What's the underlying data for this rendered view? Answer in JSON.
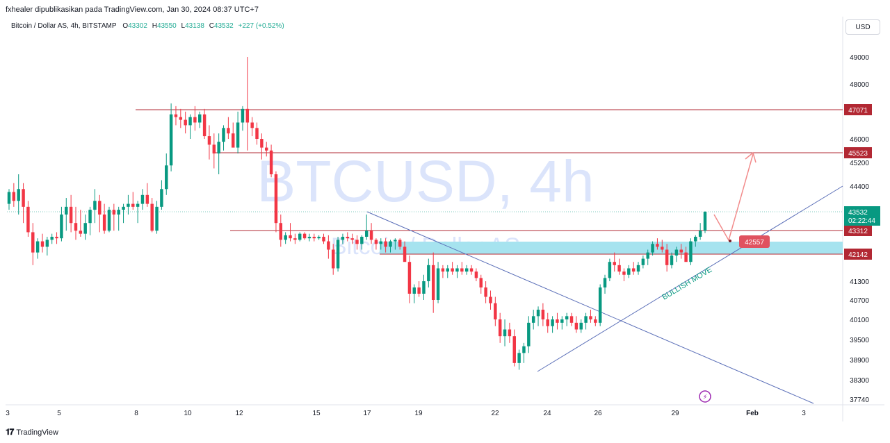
{
  "header": {
    "publish_line": "fxhealer dipublikasikan pada TradingView.com, Jan 30, 2024 08:37 UTC+7",
    "symbol_title": "Bitcoin / Dollar AS, 4h, BITSTAMP",
    "open_label": "O",
    "open": "43302",
    "high_label": "H",
    "high": "43550",
    "low_label": "L",
    "low": "43138",
    "close_label": "C",
    "close": "43532",
    "change": "+227 (+0.52%)",
    "currency": "USD"
  },
  "footer": {
    "brand": "TradingView",
    "logo_glyph": "𝟏𝟕"
  },
  "chart_data": {
    "type": "candlestick",
    "watermark": "BTCUSD, 4h",
    "watermark_sub": "Bitcoin / Dollar AS",
    "y_ticks": [
      49000,
      48000,
      46000,
      45200,
      44400,
      41300,
      40700,
      40100,
      39500,
      38900,
      38300,
      37740
    ],
    "x_ticks": [
      "3",
      "5",
      "8",
      "10",
      "12",
      "15",
      "17",
      "19",
      "22",
      "24",
      "26",
      "29",
      "Feb",
      "3"
    ],
    "levels": [
      {
        "price": 47071,
        "label": "47071"
      },
      {
        "price": 45523,
        "label": "45523"
      },
      {
        "price": 43312,
        "label": "43312"
      },
      {
        "price": 42142,
        "label": "42142"
      }
    ],
    "last_price": {
      "label": "43532",
      "countdown": "02:22:44"
    },
    "zone": {
      "low": 42142,
      "high": 42580,
      "color": "#a6e3ef"
    },
    "projection_target": {
      "label": "42557"
    },
    "annotation": "BULLISH MOVE",
    "colors": {
      "up": "#089981",
      "down": "#f23645",
      "level": "#b22833",
      "trend": "#5b6fb8",
      "arrow": "#f28b8b",
      "label_bg": "#b22833",
      "price_bg": "#089981"
    },
    "candles": [
      [
        43800,
        44300,
        43600,
        44200
      ],
      [
        44200,
        44500,
        43700,
        43900
      ],
      [
        43900,
        44800,
        43500,
        44300
      ],
      [
        44300,
        44500,
        43400,
        43700
      ],
      [
        43700,
        43900,
        42900,
        43200
      ],
      [
        43200,
        43400,
        41800,
        42200
      ],
      [
        42200,
        42800,
        42000,
        42600
      ],
      [
        42600,
        43100,
        42200,
        42400
      ],
      [
        42400,
        42900,
        42100,
        42700
      ],
      [
        42700,
        43100,
        42500,
        42900
      ],
      [
        42900,
        43200,
        42500,
        42800
      ],
      [
        42800,
        43700,
        42600,
        43500
      ],
      [
        43500,
        44000,
        43300,
        43700
      ],
      [
        43700,
        44100,
        43200,
        43400
      ],
      [
        43400,
        43700,
        42700,
        43300
      ],
      [
        43300,
        43600,
        42900,
        43100
      ],
      [
        43100,
        43500,
        42700,
        43400
      ],
      [
        43400,
        43700,
        43000,
        43600
      ],
      [
        43600,
        44300,
        43400,
        43900
      ],
      [
        43900,
        44100,
        43200,
        43500
      ],
      [
        43500,
        43800,
        43100,
        43300
      ],
      [
        43300,
        43700,
        43200,
        43600
      ],
      [
        43600,
        43800,
        43300,
        43500
      ],
      [
        43500,
        43700,
        43300,
        43600
      ],
      [
        43600,
        43800,
        43400,
        43700
      ],
      [
        43700,
        44100,
        43500,
        43800
      ],
      [
        43800,
        44200,
        43600,
        43700
      ],
      [
        43700,
        43900,
        43400,
        43800
      ],
      [
        43800,
        44300,
        43600,
        44100
      ],
      [
        44100,
        44500,
        43700,
        43800
      ],
      [
        43800,
        44000,
        43200,
        43300
      ],
      [
        43300,
        43900,
        43100,
        43700
      ],
      [
        43700,
        44600,
        43600,
        44300
      ],
      [
        44300,
        45500,
        44100,
        45100
      ],
      [
        45100,
        47300,
        44900,
        46900
      ],
      [
        46900,
        47200,
        46500,
        46800
      ],
      [
        46800,
        47100,
        46400,
        46700
      ],
      [
        46700,
        47000,
        46200,
        46500
      ],
      [
        46500,
        46900,
        46000,
        46800
      ],
      [
        46800,
        47200,
        46300,
        46600
      ],
      [
        46600,
        47000,
        46400,
        46900
      ],
      [
        46900,
        47100,
        46000,
        46100
      ],
      [
        46100,
        46500,
        45300,
        45800
      ],
      [
        45800,
        46200,
        45000,
        45500
      ],
      [
        45500,
        46200,
        44800,
        45900
      ],
      [
        45900,
        46500,
        45600,
        46400
      ],
      [
        46400,
        46800,
        46000,
        46200
      ],
      [
        46200,
        46600,
        45800,
        45700
      ],
      [
        45700,
        47000,
        45500,
        46600
      ],
      [
        46600,
        47200,
        46300,
        47100
      ],
      [
        47100,
        49000,
        45600,
        46600
      ],
      [
        46600,
        46800,
        46100,
        46400
      ],
      [
        46400,
        46600,
        45800,
        46000
      ],
      [
        46000,
        46200,
        45300,
        45700
      ],
      [
        45700,
        45900,
        45400,
        45600
      ],
      [
        45600,
        45800,
        44700,
        44800
      ],
      [
        44800,
        44900,
        43200,
        43400
      ],
      [
        43400,
        43500,
        42400,
        42700
      ],
      [
        42700,
        43200,
        42500,
        43000
      ],
      [
        43000,
        43400,
        42600,
        42800
      ],
      [
        42800,
        43100,
        42500,
        42700
      ],
      [
        42700,
        43200,
        42600,
        43100
      ],
      [
        43100,
        43200,
        42700,
        42800
      ],
      [
        42800,
        43100,
        42600,
        42900
      ],
      [
        42900,
        43100,
        42600,
        42800
      ],
      [
        42800,
        43000,
        42700,
        42900
      ],
      [
        42900,
        43100,
        42500,
        42600
      ],
      [
        42600,
        43000,
        42000,
        42300
      ],
      [
        42300,
        42500,
        41500,
        41700
      ],
      [
        41700,
        42900,
        41600,
        42700
      ],
      [
        42700,
        43100,
        42500,
        42900
      ],
      [
        42900,
        43200,
        42600,
        42800
      ],
      [
        42800,
        43100,
        42500,
        42700
      ],
      [
        42700,
        43000,
        42300,
        42500
      ],
      [
        42500,
        43000,
        42300,
        42900
      ],
      [
        42900,
        43500,
        42700,
        43300
      ],
      [
        43300,
        43400,
        42500,
        42700
      ],
      [
        42700,
        42800,
        42300,
        42500
      ],
      [
        42500,
        42800,
        42300,
        42600
      ],
      [
        42600,
        42800,
        42200,
        42400
      ],
      [
        42400,
        42700,
        42200,
        42600
      ],
      [
        42600,
        42800,
        42300,
        42700
      ],
      [
        42700,
        42800,
        42300,
        42400
      ],
      [
        42400,
        42600,
        42000,
        41900
      ],
      [
        41900,
        42100,
        40600,
        40900
      ],
      [
        40900,
        41200,
        40600,
        41100
      ],
      [
        41100,
        41300,
        40800,
        40900
      ],
      [
        40900,
        41500,
        40700,
        41300
      ],
      [
        41300,
        42000,
        41100,
        41800
      ],
      [
        41800,
        42200,
        40300,
        40700
      ],
      [
        40700,
        41900,
        40600,
        41700
      ],
      [
        41700,
        41800,
        41400,
        41600
      ],
      [
        41600,
        41800,
        41400,
        41700
      ],
      [
        41700,
        41900,
        41500,
        41600
      ],
      [
        41600,
        41800,
        41400,
        41700
      ],
      [
        41700,
        41900,
        41500,
        41600
      ],
      [
        41600,
        41800,
        41500,
        41700
      ],
      [
        41700,
        41800,
        41500,
        41600
      ],
      [
        41600,
        41700,
        41300,
        41400
      ],
      [
        41400,
        41500,
        40900,
        41100
      ],
      [
        41100,
        41300,
        40600,
        40800
      ],
      [
        40800,
        41000,
        40400,
        40600
      ],
      [
        40600,
        40800,
        39900,
        40100
      ],
      [
        40100,
        40300,
        39400,
        39600
      ],
      [
        39600,
        40100,
        39300,
        39800
      ],
      [
        39800,
        40000,
        39400,
        39600
      ],
      [
        39600,
        39800,
        38700,
        38800
      ],
      [
        38800,
        39200,
        38600,
        39100
      ],
      [
        39100,
        39400,
        38800,
        39300
      ],
      [
        39300,
        40200,
        39100,
        40000
      ],
      [
        40000,
        40400,
        39800,
        40200
      ],
      [
        40200,
        40500,
        39900,
        40400
      ],
      [
        40400,
        40600,
        39900,
        40100
      ],
      [
        40100,
        40300,
        39700,
        39900
      ],
      [
        39900,
        40200,
        39700,
        40100
      ],
      [
        40100,
        40300,
        39800,
        40000
      ],
      [
        40000,
        40200,
        39800,
        40100
      ],
      [
        40100,
        40300,
        39900,
        40200
      ],
      [
        40200,
        40300,
        39900,
        40000
      ],
      [
        40000,
        40200,
        39700,
        39800
      ],
      [
        39800,
        40100,
        39700,
        40000
      ],
      [
        40000,
        40300,
        39800,
        40200
      ],
      [
        40200,
        40400,
        40000,
        40100
      ],
      [
        40100,
        40200,
        39900,
        40000
      ],
      [
        40000,
        41200,
        39900,
        41100
      ],
      [
        41100,
        41500,
        40900,
        41400
      ],
      [
        41400,
        42000,
        41300,
        41900
      ],
      [
        41900,
        42200,
        41600,
        41800
      ],
      [
        41800,
        42000,
        41500,
        41600
      ],
      [
        41600,
        41700,
        41300,
        41500
      ],
      [
        41500,
        41800,
        41400,
        41700
      ],
      [
        41700,
        41900,
        41500,
        41600
      ],
      [
        41600,
        41900,
        41500,
        41800
      ],
      [
        41800,
        42100,
        41700,
        42000
      ],
      [
        42000,
        42300,
        41800,
        42200
      ],
      [
        42200,
        42600,
        42100,
        42500
      ],
      [
        42500,
        42800,
        42300,
        42400
      ],
      [
        42400,
        42700,
        42200,
        42300
      ],
      [
        42300,
        42500,
        41600,
        41800
      ],
      [
        41800,
        42200,
        41700,
        42100
      ],
      [
        42100,
        42400,
        41900,
        42300
      ],
      [
        42300,
        42500,
        42000,
        42200
      ],
      [
        42200,
        42400,
        42000,
        41900
      ],
      [
        41900,
        42800,
        41800,
        42600
      ],
      [
        42600,
        43000,
        42400,
        42900
      ],
      [
        42900,
        43400,
        42700,
        43300
      ],
      [
        43300,
        43550,
        43138,
        43532
      ]
    ]
  }
}
